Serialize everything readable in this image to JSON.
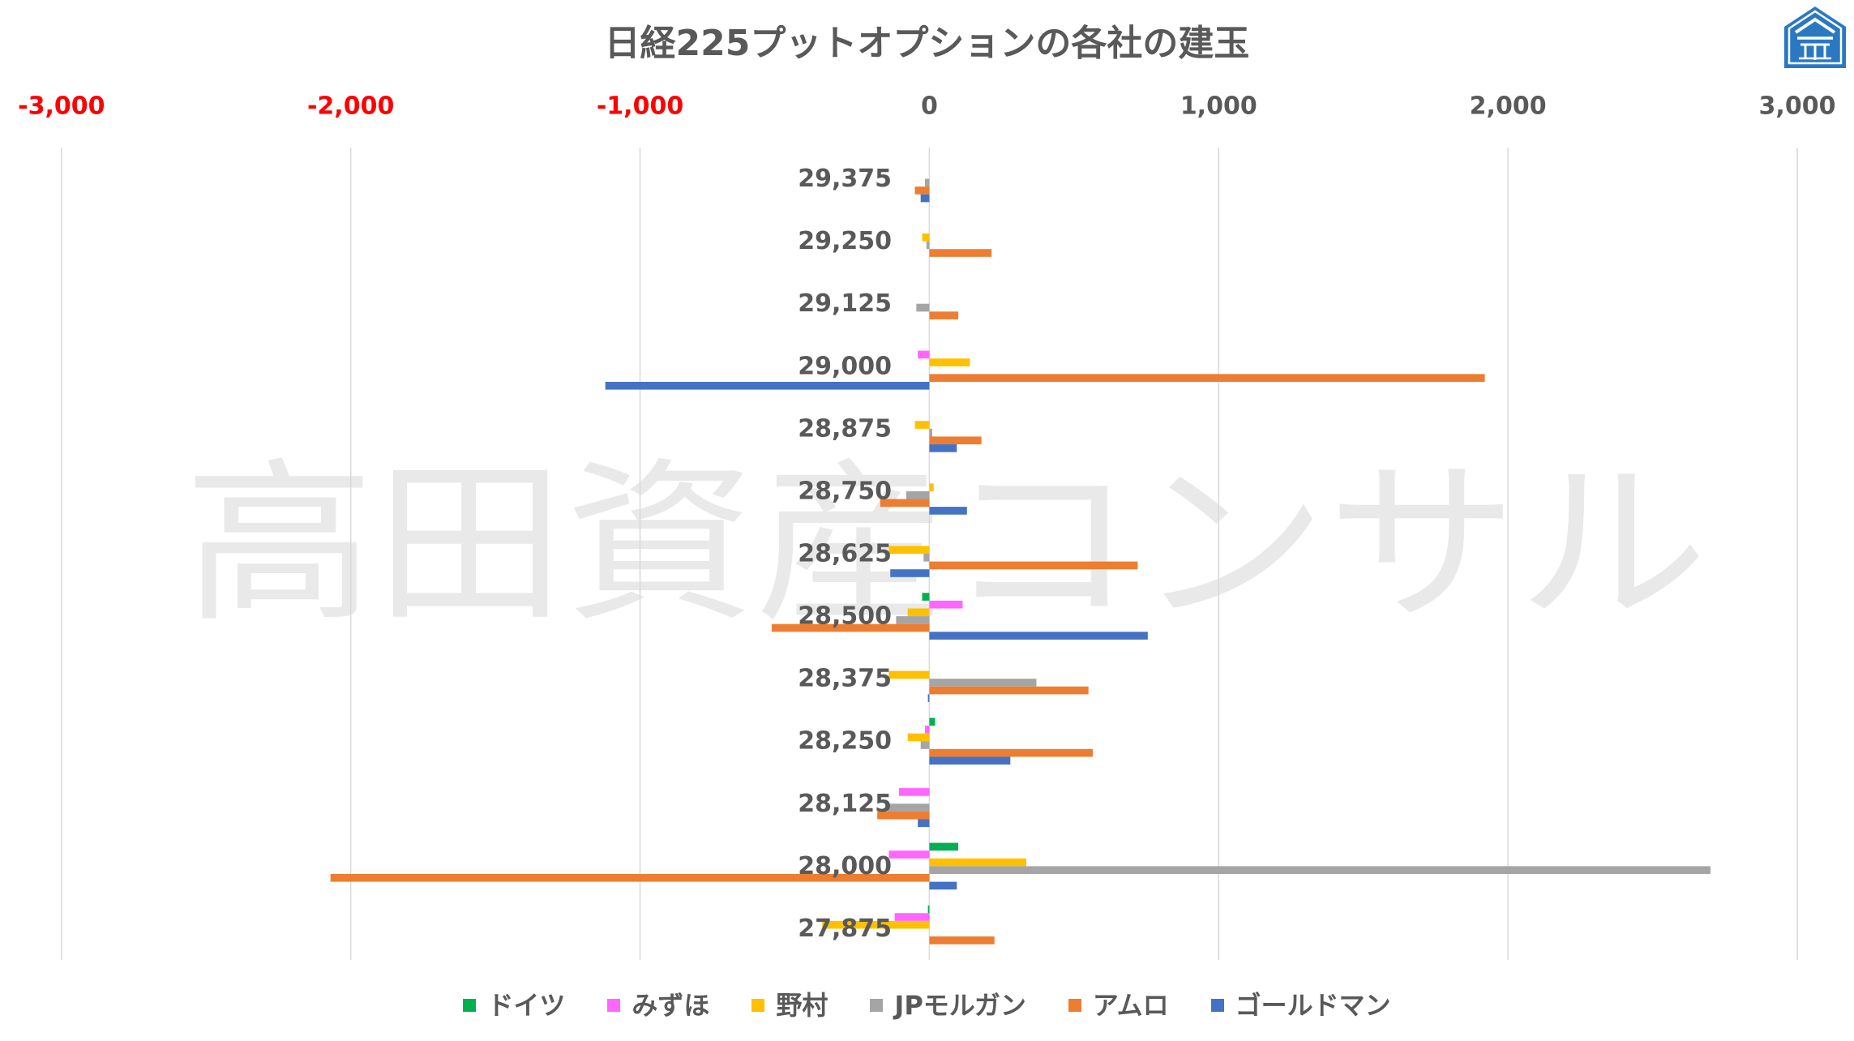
{
  "chart_data": {
    "type": "bar",
    "orientation": "horizontal",
    "title": "日経225プットオプションの各社の建玉",
    "categories": [
      "29,375",
      "29,250",
      "29,125",
      "29,000",
      "28,875",
      "28,750",
      "28,625",
      "28,500",
      "28,375",
      "28,250",
      "28,125",
      "28,000",
      "27,875"
    ],
    "series": [
      {
        "name": "ドイツ",
        "color": "#00B050",
        "values": [
          0,
          0,
          0,
          0,
          0,
          0,
          0,
          -25,
          0,
          20,
          0,
          100,
          -5
        ]
      },
      {
        "name": "みずほ",
        "color": "#FF66FF",
        "values": [
          0,
          0,
          0,
          -40,
          0,
          0,
          0,
          115,
          0,
          -15,
          -105,
          -140,
          -120
        ]
      },
      {
        "name": "野村",
        "color": "#FFC000",
        "values": [
          0,
          -25,
          0,
          140,
          -50,
          15,
          -140,
          -75,
          -140,
          -75,
          0,
          335,
          -370
        ]
      },
      {
        "name": "JPモルガン",
        "color": "#A5A5A5",
        "values": [
          -15,
          -10,
          -45,
          0,
          10,
          -80,
          -20,
          -115,
          370,
          -30,
          -145,
          2700,
          0
        ]
      },
      {
        "name": "アムロ",
        "color": "#ED7D31",
        "values": [
          -50,
          215,
          100,
          1920,
          180,
          -170,
          720,
          -545,
          550,
          565,
          -180,
          -2070,
          225
        ]
      },
      {
        "name": "ゴールドマン",
        "color": "#4472C4",
        "values": [
          -30,
          0,
          0,
          -1120,
          95,
          130,
          -135,
          755,
          -5,
          280,
          -40,
          95,
          0
        ]
      }
    ],
    "xlim": [
      -3000,
      3000
    ],
    "x_ticks": [
      -3000,
      -2000,
      -1000,
      0,
      1000,
      2000,
      3000
    ],
    "x_tick_labels": [
      "-3,000",
      "-2,000",
      "-1,000",
      "0",
      "1,000",
      "2,000",
      "3,000"
    ],
    "x_axis_position": "top",
    "tick_label_color": "#595959",
    "negative_tick_label_color": "#FF0000",
    "category_label_color": "#595959",
    "gridline_color": "#D9D9D9",
    "grid": true,
    "legend_position": "bottom"
  },
  "watermark": "高田資産コンサル",
  "logo": {
    "icon": "company-logo-icon",
    "color": "#2B78C2"
  }
}
